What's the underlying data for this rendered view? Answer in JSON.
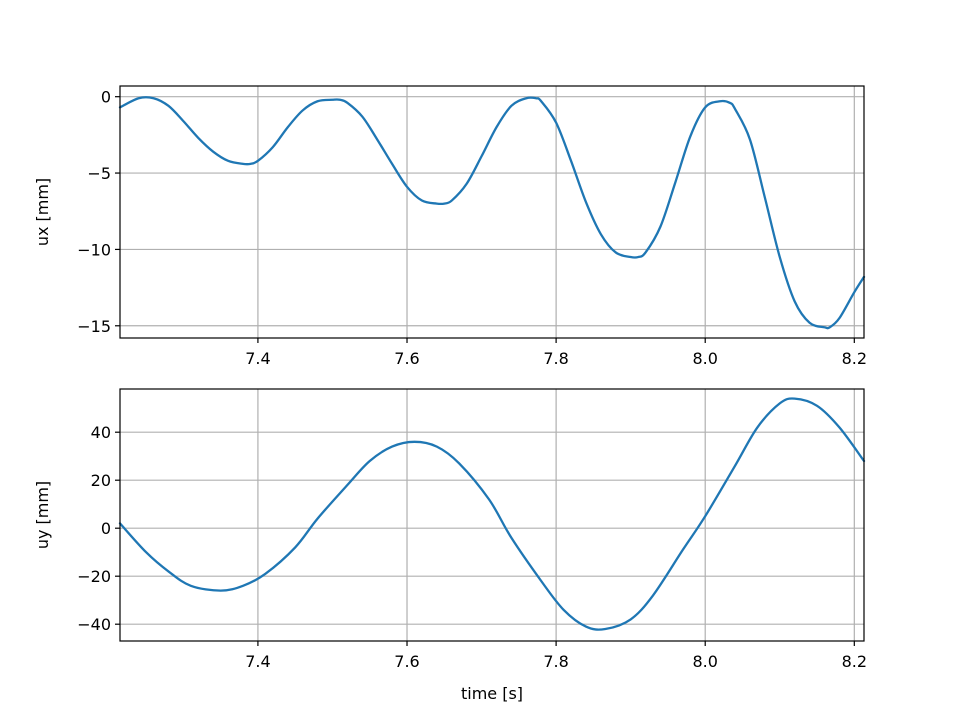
{
  "chart_data": [
    {
      "type": "line",
      "xlabel": "",
      "ylabel": "ux [mm]",
      "xlim": [
        7.215,
        8.213
      ],
      "ylim": [
        -15.8,
        0.7
      ],
      "xticks": [
        7.4,
        7.6,
        7.8,
        8.0,
        8.2
      ],
      "xtick_labels": [
        "7.4",
        "7.6",
        "7.8",
        "8.0",
        "8.2"
      ],
      "yticks": [
        -15,
        -10,
        -5,
        0
      ],
      "ytick_labels": [
        "−15",
        "−10",
        "−5",
        "0"
      ],
      "grid": true,
      "color": "#1f77b4",
      "series": [
        {
          "x": [
            7.215,
            7.24,
            7.26,
            7.28,
            7.3,
            7.32,
            7.34,
            7.36,
            7.38,
            7.39,
            7.4,
            7.42,
            7.44,
            7.46,
            7.48,
            7.5,
            7.51,
            7.52,
            7.54,
            7.56,
            7.58,
            7.6,
            7.62,
            7.64,
            7.65,
            7.66,
            7.68,
            7.7,
            7.72,
            7.74,
            7.76,
            7.773,
            7.78,
            7.8,
            7.82,
            7.84,
            7.86,
            7.88,
            7.9,
            7.91,
            7.92,
            7.94,
            7.96,
            7.98,
            8.0,
            8.02,
            8.033,
            8.04,
            8.06,
            8.08,
            8.1,
            8.12,
            8.14,
            8.16,
            8.167,
            8.18,
            8.2,
            8.213
          ],
          "y": [
            -0.7,
            -0.1,
            -0.1,
            -0.6,
            -1.6,
            -2.7,
            -3.6,
            -4.2,
            -4.4,
            -4.4,
            -4.2,
            -3.3,
            -2.0,
            -0.9,
            -0.3,
            -0.2,
            -0.2,
            -0.4,
            -1.3,
            -2.8,
            -4.4,
            -5.9,
            -6.8,
            -7.0,
            -7.0,
            -6.8,
            -5.7,
            -3.9,
            -2.0,
            -0.6,
            -0.1,
            -0.1,
            -0.3,
            -1.7,
            -4.2,
            -6.9,
            -9.0,
            -10.2,
            -10.5,
            -10.5,
            -10.2,
            -8.5,
            -5.6,
            -2.6,
            -0.7,
            -0.3,
            -0.4,
            -0.8,
            -2.8,
            -6.6,
            -10.5,
            -13.4,
            -14.8,
            -15.1,
            -15.1,
            -14.5,
            -12.8,
            -11.8
          ]
        }
      ]
    },
    {
      "type": "line",
      "xlabel": "time [s]",
      "ylabel": "uy [mm]",
      "xlim": [
        7.215,
        8.213
      ],
      "ylim": [
        -47,
        58
      ],
      "xticks": [
        7.4,
        7.6,
        7.8,
        8.0,
        8.2
      ],
      "xtick_labels": [
        "7.4",
        "7.6",
        "7.8",
        "8.0",
        "8.2"
      ],
      "yticks": [
        -40,
        -20,
        0,
        20,
        40
      ],
      "ytick_labels": [
        "−40",
        "−20",
        "0",
        "20",
        "40"
      ],
      "grid": true,
      "color": "#1f77b4",
      "series": [
        {
          "x": [
            7.215,
            7.25,
            7.28,
            7.31,
            7.35,
            7.38,
            7.41,
            7.45,
            7.48,
            7.52,
            7.55,
            7.58,
            7.61,
            7.64,
            7.67,
            7.71,
            7.74,
            7.78,
            7.81,
            7.84,
            7.866,
            7.9,
            7.93,
            7.97,
            8.0,
            8.04,
            8.07,
            8.1,
            8.12,
            8.15,
            8.18,
            8.213
          ],
          "y": [
            2,
            -10,
            -18,
            -24,
            -26,
            -24,
            -19,
            -8,
            4,
            18,
            28,
            34,
            36,
            34,
            27,
            12,
            -4,
            -22,
            -34,
            -41,
            -42,
            -38,
            -28,
            -9,
            5,
            26,
            42,
            52,
            54,
            51,
            42,
            28
          ]
        }
      ]
    }
  ]
}
